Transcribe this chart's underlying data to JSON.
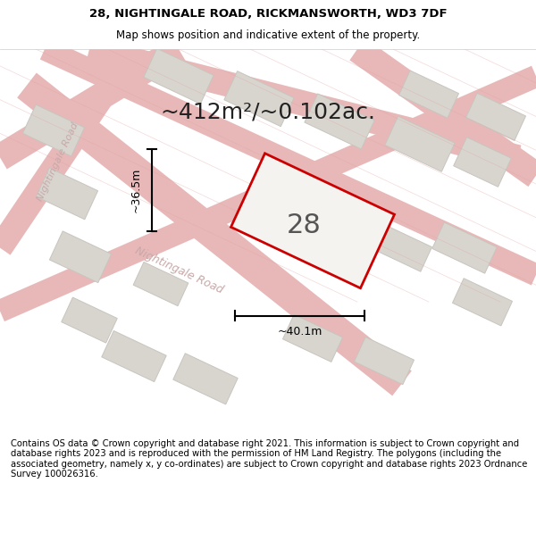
{
  "title_line1": "28, NIGHTINGALE ROAD, RICKMANSWORTH, WD3 7DF",
  "title_line2": "Map shows position and indicative extent of the property.",
  "area_text": "~412m²/~0.102ac.",
  "label_28": "28",
  "dim_height": "~36.5m",
  "dim_width": "~40.1m",
  "road_label": "Nightingale Road",
  "road_label2": "Nightingale Road",
  "footer_text": "Contains OS data © Crown copyright and database right 2021. This information is subject to Crown copyright and database rights 2023 and is reproduced with the permission of HM Land Registry. The polygons (including the associated geometry, namely x, y co-ordinates) are subject to Crown copyright and database rights 2023 Ordnance Survey 100026316.",
  "bg_color": "#f0eeea",
  "map_bg": "#f0eeea",
  "plot_color_fill": "#f0eeea",
  "plot_color_edge": "#cc0000",
  "road_color": "#e8b8b8",
  "block_color_fill": "#d8d5cf",
  "block_color_edge": "#c8c5bf",
  "footer_bg": "#ffffff",
  "title_bg": "#ffffff"
}
